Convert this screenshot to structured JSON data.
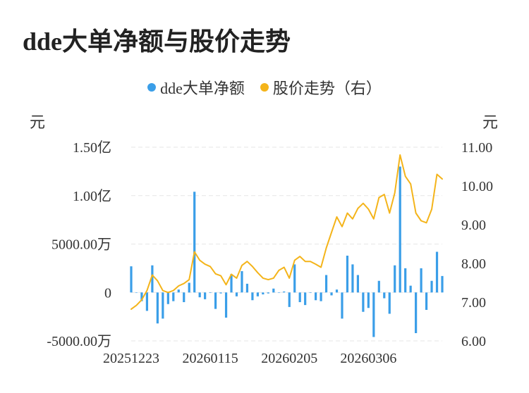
{
  "title": "dde大单净额与股价走势",
  "colors": {
    "bar": "#3a9ee8",
    "line": "#f4b41a",
    "grid": "#e6e6e6"
  },
  "chart_data": {
    "type": "bar+line",
    "title": "dde大单净额与股价走势",
    "legend_position": "top-center",
    "left_axis": {
      "unit": "元",
      "ylim": [
        -50000000,
        150000000
      ],
      "ticks": [
        {
          "value": 150000000,
          "label": "1.50亿"
        },
        {
          "value": 100000000,
          "label": "1.00亿"
        },
        {
          "value": 50000000,
          "label": "5000.00万"
        },
        {
          "value": 0,
          "label": "0"
        },
        {
          "value": -50000000,
          "label": "-5000.00万"
        }
      ]
    },
    "right_axis": {
      "unit": "元",
      "ylim": [
        6.0,
        11.0
      ],
      "ticks": [
        {
          "value": 11.0,
          "label": "11.00"
        },
        {
          "value": 10.0,
          "label": "10.00"
        },
        {
          "value": 9.0,
          "label": "9.00"
        },
        {
          "value": 8.0,
          "label": "8.00"
        },
        {
          "value": 7.0,
          "label": "7.00"
        },
        {
          "value": 6.0,
          "label": "6.00"
        }
      ]
    },
    "x_tick_labels": [
      {
        "index": 0,
        "label": "20251223"
      },
      {
        "index": 15,
        "label": "20260115"
      },
      {
        "index": 30,
        "label": "20260205"
      },
      {
        "index": 45,
        "label": "20260306"
      }
    ],
    "series": [
      {
        "name": "dde大单净额",
        "type": "bar",
        "axis": "left",
        "values": [
          27000000,
          0,
          -9000000,
          -19000000,
          28000000,
          -32000000,
          -27000000,
          -12000000,
          -9000000,
          3000000,
          -10000000,
          10000000,
          104000000,
          -5000000,
          -7000000,
          0,
          -17000000,
          -1000000,
          -26000000,
          19000000,
          -4000000,
          22000000,
          9000000,
          -8000000,
          -4000000,
          -2000000,
          -1000000,
          4000000,
          0,
          1000000,
          -15000000,
          29000000,
          -10000000,
          -13000000,
          0,
          -8000000,
          -9000000,
          18000000,
          -3000000,
          3000000,
          -27000000,
          38000000,
          29000000,
          18000000,
          -20000000,
          -16000000,
          -46000000,
          12000000,
          -6000000,
          -22000000,
          28000000,
          130000000,
          25000000,
          7000000,
          -42000000,
          25000000,
          -18000000,
          12000000,
          42000000,
          17000000
        ]
      },
      {
        "name": "股价走势（右）",
        "type": "line",
        "axis": "right",
        "values": [
          6.82,
          6.92,
          7.06,
          7.3,
          7.7,
          7.55,
          7.3,
          7.25,
          7.3,
          7.42,
          7.48,
          7.58,
          8.3,
          8.08,
          7.98,
          7.92,
          7.73,
          7.68,
          7.45,
          7.72,
          7.62,
          7.95,
          8.05,
          7.92,
          7.76,
          7.62,
          7.58,
          7.62,
          7.82,
          7.9,
          7.62,
          8.08,
          8.18,
          8.05,
          8.05,
          7.98,
          7.9,
          8.4,
          8.8,
          9.2,
          8.95,
          9.3,
          9.15,
          9.42,
          9.55,
          9.4,
          9.15,
          9.7,
          9.78,
          9.3,
          9.82,
          10.8,
          10.25,
          10.05,
          9.3,
          9.1,
          9.05,
          9.4,
          10.3,
          10.18
        ]
      }
    ]
  }
}
